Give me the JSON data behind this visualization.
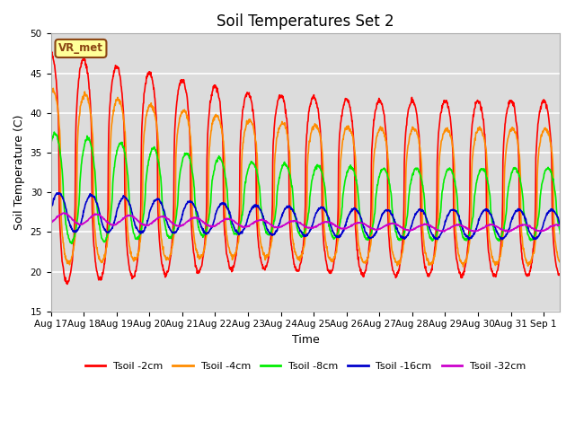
{
  "title": "Soil Temperatures Set 2",
  "xlabel": "Time",
  "ylabel": "Soil Temperature (C)",
  "ylim": [
    15,
    50
  ],
  "yticks": [
    15,
    20,
    25,
    30,
    35,
    40,
    45,
    50
  ],
  "plot_bg_color": "#dcdcdc",
  "series": [
    {
      "label": "Tsoil -2cm",
      "color": "#ff0000",
      "lw": 1.2
    },
    {
      "label": "Tsoil -4cm",
      "color": "#ff8c00",
      "lw": 1.2
    },
    {
      "label": "Tsoil -8cm",
      "color": "#00ee00",
      "lw": 1.2
    },
    {
      "label": "Tsoil -16cm",
      "color": "#0000cc",
      "lw": 1.2
    },
    {
      "label": "Tsoil -32cm",
      "color": "#cc00cc",
      "lw": 1.2
    }
  ],
  "annotation_text": "VR_met",
  "annotation_color": "#8b4513",
  "annotation_bg": "#ffff99",
  "annotation_border": "#8b4513",
  "x_tick_labels": [
    "Aug 17",
    "Aug 18",
    "Aug 19",
    "Aug 20",
    "Aug 21",
    "Aug 22",
    "Aug 23",
    "Aug 24",
    "Aug 25",
    "Aug 26",
    "Aug 27",
    "Aug 28",
    "Aug 29",
    "Aug 30",
    "Aug 31",
    "Sep 1"
  ],
  "title_fontsize": 12,
  "axis_label_fontsize": 9,
  "tick_fontsize": 7.5
}
